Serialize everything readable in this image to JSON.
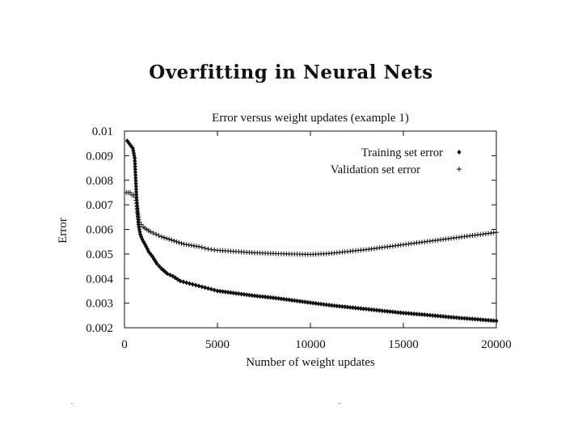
{
  "slide": {
    "title": "Overfitting in Neural Nets"
  },
  "chart_data": {
    "type": "scatter",
    "title": "Error versus weight updates (example 1)",
    "xlabel": "Number of weight updates",
    "ylabel": "Error",
    "xlim": [
      0,
      20000
    ],
    "ylim": [
      0.002,
      0.01
    ],
    "xticks": [
      0,
      5000,
      10000,
      15000,
      20000
    ],
    "yticks": [
      0.002,
      0.003,
      0.004,
      0.005,
      0.006,
      0.007,
      0.008,
      0.009,
      0.01
    ],
    "legend_position": "top-right",
    "series": [
      {
        "name": "Training set error",
        "marker": "diamond",
        "x": [
          150,
          250,
          350,
          450,
          550,
          650,
          750,
          850,
          950,
          1100,
          1300,
          1500,
          1750,
          2000,
          2300,
          2600,
          3000,
          3500,
          4000,
          4500,
          5000,
          6000,
          7000,
          8000,
          9000,
          10000,
          11000,
          12000,
          13000,
          14000,
          15000,
          16000,
          17000,
          18000,
          19000,
          20000
        ],
        "y": [
          0.0096,
          0.0095,
          0.0094,
          0.0093,
          0.0089,
          0.0073,
          0.0062,
          0.0058,
          0.0056,
          0.0054,
          0.0051,
          0.0049,
          0.0046,
          0.0044,
          0.0042,
          0.0041,
          0.0039,
          0.0038,
          0.0037,
          0.0036,
          0.0035,
          0.0034,
          0.0033,
          0.00322,
          0.00312,
          0.00302,
          0.00292,
          0.00284,
          0.00276,
          0.00268,
          0.0026,
          0.00254,
          0.00247,
          0.0024,
          0.00234,
          0.00228
        ]
      },
      {
        "name": "Validation set error",
        "marker": "plus",
        "x": [
          100,
          200,
          300,
          400,
          500,
          600,
          700,
          800,
          900,
          1000,
          1200,
          1400,
          1700,
          2000,
          2400,
          2800,
          3200,
          3600,
          4000,
          4500,
          5000,
          6000,
          7000,
          8000,
          9000,
          10000,
          11000,
          12000,
          13000,
          14000,
          15000,
          16000,
          17000,
          18000,
          19000,
          20000
        ],
        "y": [
          0.0075,
          0.0075,
          0.0075,
          0.0074,
          0.0074,
          0.0073,
          0.0067,
          0.0063,
          0.0062,
          0.0061,
          0.006,
          0.0059,
          0.0058,
          0.0057,
          0.0056,
          0.0055,
          0.0054,
          0.00535,
          0.0053,
          0.0052,
          0.00515,
          0.0051,
          0.00505,
          0.00502,
          0.005,
          0.00498,
          0.00502,
          0.0051,
          0.00518,
          0.00528,
          0.00538,
          0.00548,
          0.00558,
          0.00568,
          0.00578,
          0.00588
        ]
      }
    ]
  }
}
